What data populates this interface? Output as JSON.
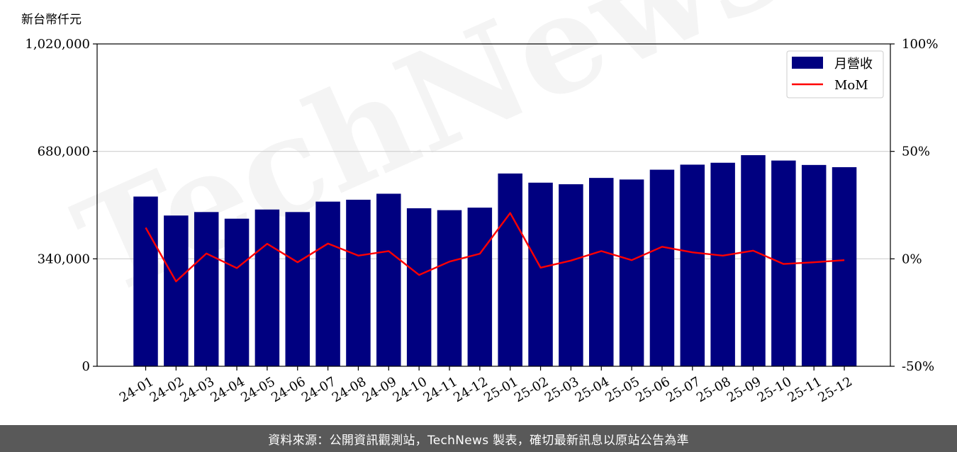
{
  "chart_data": {
    "type": "bar+line",
    "y_unit_label": "新台幣仟元",
    "categories": [
      "24-01",
      "24-02",
      "24-03",
      "24-04",
      "24-05",
      "24-06",
      "24-07",
      "24-08",
      "24-09",
      "24-10",
      "24-11",
      "24-12",
      "25-01",
      "25-02",
      "25-03",
      "25-04",
      "25-05",
      "25-06",
      "25-07",
      "25-08",
      "25-09",
      "25-10",
      "25-11",
      "25-12"
    ],
    "series": [
      {
        "name": "月營收",
        "type": "bar",
        "axis": "left",
        "color": "#000080",
        "values": [
          537000,
          477000,
          488000,
          467000,
          496000,
          488000,
          521000,
          527000,
          546000,
          500000,
          494000,
          502000,
          610000,
          581000,
          576000,
          596000,
          591000,
          622000,
          638000,
          644000,
          668000,
          651000,
          637000,
          630000
        ]
      },
      {
        "name": "MoM",
        "type": "line",
        "axis": "right",
        "color": "#ff0000",
        "values": [
          14.5,
          -10.5,
          2.5,
          -4.3,
          7.0,
          -1.6,
          7.1,
          1.5,
          3.6,
          -7.5,
          -1.3,
          2.4,
          21.3,
          -4.1,
          -0.8,
          3.6,
          -0.6,
          5.6,
          3.0,
          1.5,
          3.8,
          -2.4,
          -1.6,
          -0.6
        ]
      }
    ],
    "y_left": {
      "ylim": [
        0,
        1020000
      ],
      "ticks": [
        "0",
        "340,000",
        "680,000",
        "1,020,000"
      ],
      "tick_values": [
        0,
        340000,
        680000,
        1020000
      ]
    },
    "y_right": {
      "ylim": [
        -50,
        100
      ],
      "ticks": [
        "-50%",
        "0%",
        "50%",
        "100%"
      ],
      "tick_values": [
        -50,
        0,
        50,
        100
      ]
    },
    "grid": "horizontal",
    "legend_position": "top-right",
    "watermark": "TechNews"
  },
  "footer": {
    "text": "資料來源：公開資訊觀測站，TechNews 製表，確切最新訊息以原站公告為準"
  }
}
